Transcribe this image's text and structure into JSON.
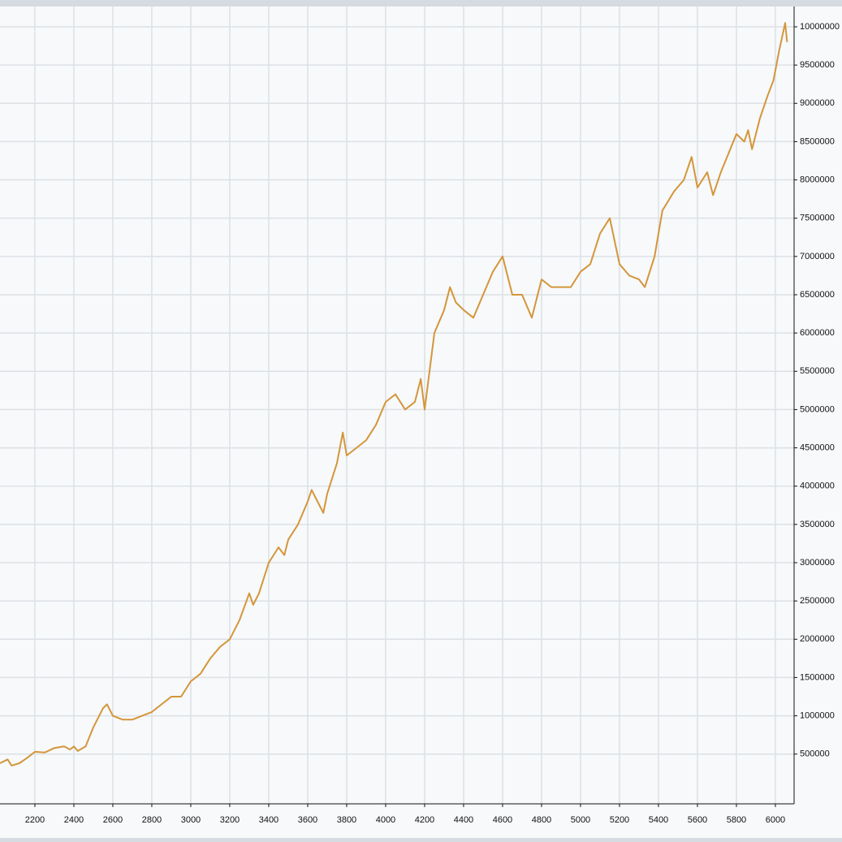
{
  "chart_data": {
    "type": "line",
    "color": "#d4963a",
    "grid": true,
    "x": [
      2021,
      2060,
      2080,
      2120,
      2160,
      2200,
      2250,
      2300,
      2350,
      2380,
      2400,
      2420,
      2460,
      2500,
      2550,
      2570,
      2600,
      2650,
      2700,
      2750,
      2800,
      2850,
      2900,
      2950,
      3000,
      3050,
      3100,
      3150,
      3200,
      3250,
      3300,
      3320,
      3350,
      3400,
      3450,
      3480,
      3500,
      3550,
      3600,
      3620,
      3650,
      3680,
      3700,
      3750,
      3780,
      3800,
      3850,
      3900,
      3950,
      4000,
      4050,
      4100,
      4150,
      4180,
      4200,
      4250,
      4300,
      4330,
      4360,
      4400,
      4450,
      4500,
      4550,
      4600,
      4650,
      4700,
      4750,
      4800,
      4850,
      4900,
      4950,
      5000,
      5050,
      5100,
      5150,
      5200,
      5250,
      5300,
      5330,
      5380,
      5420,
      5480,
      5530,
      5570,
      5600,
      5650,
      5680,
      5720,
      5760,
      5800,
      5840,
      5860,
      5880,
      5920,
      5960,
      5990,
      6020,
      6050,
      6060
    ],
    "values": [
      380000,
      430000,
      350000,
      380000,
      450000,
      530000,
      520000,
      580000,
      600000,
      560000,
      600000,
      540000,
      600000,
      850000,
      1100000,
      1150000,
      1000000,
      950000,
      950000,
      1000000,
      1050000,
      1150000,
      1250000,
      1250000,
      1450000,
      1550000,
      1750000,
      1900000,
      2000000,
      2250000,
      2600000,
      2450000,
      2600000,
      3000000,
      3200000,
      3100000,
      3300000,
      3500000,
      3800000,
      3950000,
      3800000,
      3650000,
      3900000,
      4300000,
      4700000,
      4400000,
      4500000,
      4600000,
      4800000,
      5100000,
      5200000,
      5000000,
      5100000,
      5400000,
      5000000,
      6000000,
      6300000,
      6600000,
      6400000,
      6300000,
      6200000,
      6500000,
      6800000,
      7000000,
      6500000,
      6500000,
      6200000,
      6700000,
      6600000,
      6600000,
      6600000,
      6800000,
      6900000,
      7300000,
      7500000,
      6900000,
      6750000,
      6700000,
      6600000,
      7000000,
      7600000,
      7850000,
      8000000,
      8300000,
      7900000,
      8100000,
      7800000,
      8100000,
      8350000,
      8600000,
      8500000,
      8650000,
      8400000,
      8800000,
      9100000,
      9300000,
      9700000,
      10050000,
      9800000
    ],
    "xlim": [
      2021,
      6096
    ],
    "ylim": [
      -150000,
      10265000
    ],
    "xticks": [
      2200,
      2400,
      2600,
      2800,
      3000,
      3200,
      3400,
      3600,
      3800,
      4000,
      4200,
      4400,
      4600,
      4800,
      5000,
      5200,
      5400,
      5600,
      5800,
      6000
    ],
    "yticks": [
      500000,
      1000000,
      1500000,
      2000000,
      2500000,
      3000000,
      3500000,
      4000000,
      4500000,
      5000000,
      5500000,
      6000000,
      6500000,
      7000000,
      7500000,
      8000000,
      8500000,
      9000000,
      9500000,
      10000000
    ]
  }
}
